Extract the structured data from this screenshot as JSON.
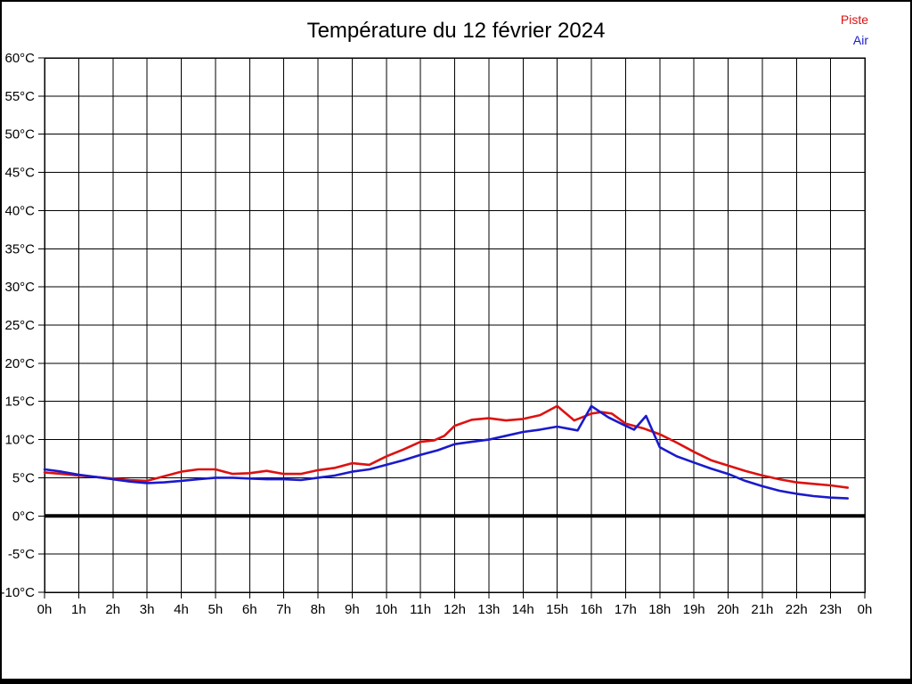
{
  "page": {
    "title": "Température du 12 février 2024"
  },
  "legend": {
    "items": [
      {
        "label": "Piste",
        "color": "#dd1111"
      },
      {
        "label": "Air",
        "color": "#1a1acc"
      }
    ]
  },
  "chart_data": {
    "type": "line",
    "title": "Température du 12 février 2024",
    "xlabel": "",
    "ylabel": "",
    "x_unit": "hour of day",
    "y_unit": "°C",
    "xlim": [
      0,
      24
    ],
    "ylim": [
      -10,
      60
    ],
    "grid": true,
    "zero_line_thick": true,
    "legend_position": "top-right",
    "x_tick_labels": [
      "0h",
      "1h",
      "2h",
      "3h",
      "4h",
      "5h",
      "6h",
      "7h",
      "8h",
      "9h",
      "10h",
      "11h",
      "12h",
      "13h",
      "14h",
      "15h",
      "16h",
      "17h",
      "18h",
      "19h",
      "20h",
      "21h",
      "22h",
      "23h",
      "0h"
    ],
    "y_tick_labels": [
      "60°C",
      "55°C",
      "50°C",
      "45°C",
      "40°C",
      "35°C",
      "30°C",
      "25°C",
      "20°C",
      "15°C",
      "10°C",
      "5°C",
      "0°C",
      "-5°C",
      "-10°C"
    ],
    "series": [
      {
        "name": "Piste",
        "color": "#dd1111",
        "points": [
          [
            0,
            5.7
          ],
          [
            0.5,
            5.5
          ],
          [
            1,
            5.3
          ],
          [
            1.5,
            5.1
          ],
          [
            2,
            4.9
          ],
          [
            2.5,
            4.7
          ],
          [
            3,
            4.6
          ],
          [
            3.5,
            5.2
          ],
          [
            4,
            5.8
          ],
          [
            4.5,
            6.1
          ],
          [
            5,
            6.1
          ],
          [
            5.5,
            5.5
          ],
          [
            6,
            5.6
          ],
          [
            6.5,
            5.9
          ],
          [
            7,
            5.5
          ],
          [
            7.5,
            5.5
          ],
          [
            8,
            6.0
          ],
          [
            8.5,
            6.3
          ],
          [
            9,
            6.9
          ],
          [
            9.5,
            6.7
          ],
          [
            10,
            7.8
          ],
          [
            10.5,
            8.7
          ],
          [
            11,
            9.7
          ],
          [
            11.4,
            9.9
          ],
          [
            11.7,
            10.5
          ],
          [
            12,
            11.8
          ],
          [
            12.5,
            12.6
          ],
          [
            13,
            12.8
          ],
          [
            13.5,
            12.5
          ],
          [
            14,
            12.7
          ],
          [
            14.5,
            13.2
          ],
          [
            15,
            14.4
          ],
          [
            15.5,
            12.5
          ],
          [
            16,
            13.4
          ],
          [
            16.3,
            13.6
          ],
          [
            16.6,
            13.4
          ],
          [
            17,
            12.1
          ],
          [
            17.5,
            11.5
          ],
          [
            18,
            10.7
          ],
          [
            18.5,
            9.6
          ],
          [
            19,
            8.4
          ],
          [
            19.5,
            7.3
          ],
          [
            20,
            6.6
          ],
          [
            20.5,
            5.9
          ],
          [
            21,
            5.3
          ],
          [
            21.5,
            4.8
          ],
          [
            22,
            4.4
          ],
          [
            22.5,
            4.2
          ],
          [
            23,
            4.0
          ],
          [
            23.5,
            3.7
          ]
        ]
      },
      {
        "name": "Air",
        "color": "#1a1acc",
        "points": [
          [
            0,
            6.1
          ],
          [
            0.5,
            5.8
          ],
          [
            1,
            5.4
          ],
          [
            1.5,
            5.1
          ],
          [
            2,
            4.8
          ],
          [
            2.5,
            4.5
          ],
          [
            3,
            4.3
          ],
          [
            3.5,
            4.4
          ],
          [
            4,
            4.6
          ],
          [
            4.5,
            4.8
          ],
          [
            5,
            5.0
          ],
          [
            5.5,
            5.0
          ],
          [
            6,
            4.9
          ],
          [
            6.5,
            4.8
          ],
          [
            7,
            4.8
          ],
          [
            7.5,
            4.7
          ],
          [
            8,
            5.0
          ],
          [
            8.5,
            5.3
          ],
          [
            9,
            5.8
          ],
          [
            9.5,
            6.1
          ],
          [
            10,
            6.7
          ],
          [
            10.5,
            7.3
          ],
          [
            11,
            8.0
          ],
          [
            11.5,
            8.6
          ],
          [
            12,
            9.4
          ],
          [
            12.5,
            9.7
          ],
          [
            13,
            10.0
          ],
          [
            13.5,
            10.5
          ],
          [
            14,
            11.0
          ],
          [
            14.5,
            11.3
          ],
          [
            15,
            11.7
          ],
          [
            15.6,
            11.2
          ],
          [
            16,
            14.4
          ],
          [
            16.5,
            12.9
          ],
          [
            17,
            11.8
          ],
          [
            17.25,
            11.3
          ],
          [
            17.6,
            13.1
          ],
          [
            18,
            9.0
          ],
          [
            18.5,
            7.8
          ],
          [
            19,
            7.0
          ],
          [
            19.5,
            6.2
          ],
          [
            20,
            5.5
          ],
          [
            20.5,
            4.6
          ],
          [
            21,
            3.9
          ],
          [
            21.5,
            3.3
          ],
          [
            22,
            2.9
          ],
          [
            22.5,
            2.6
          ],
          [
            23,
            2.4
          ],
          [
            23.5,
            2.3
          ]
        ]
      }
    ]
  }
}
